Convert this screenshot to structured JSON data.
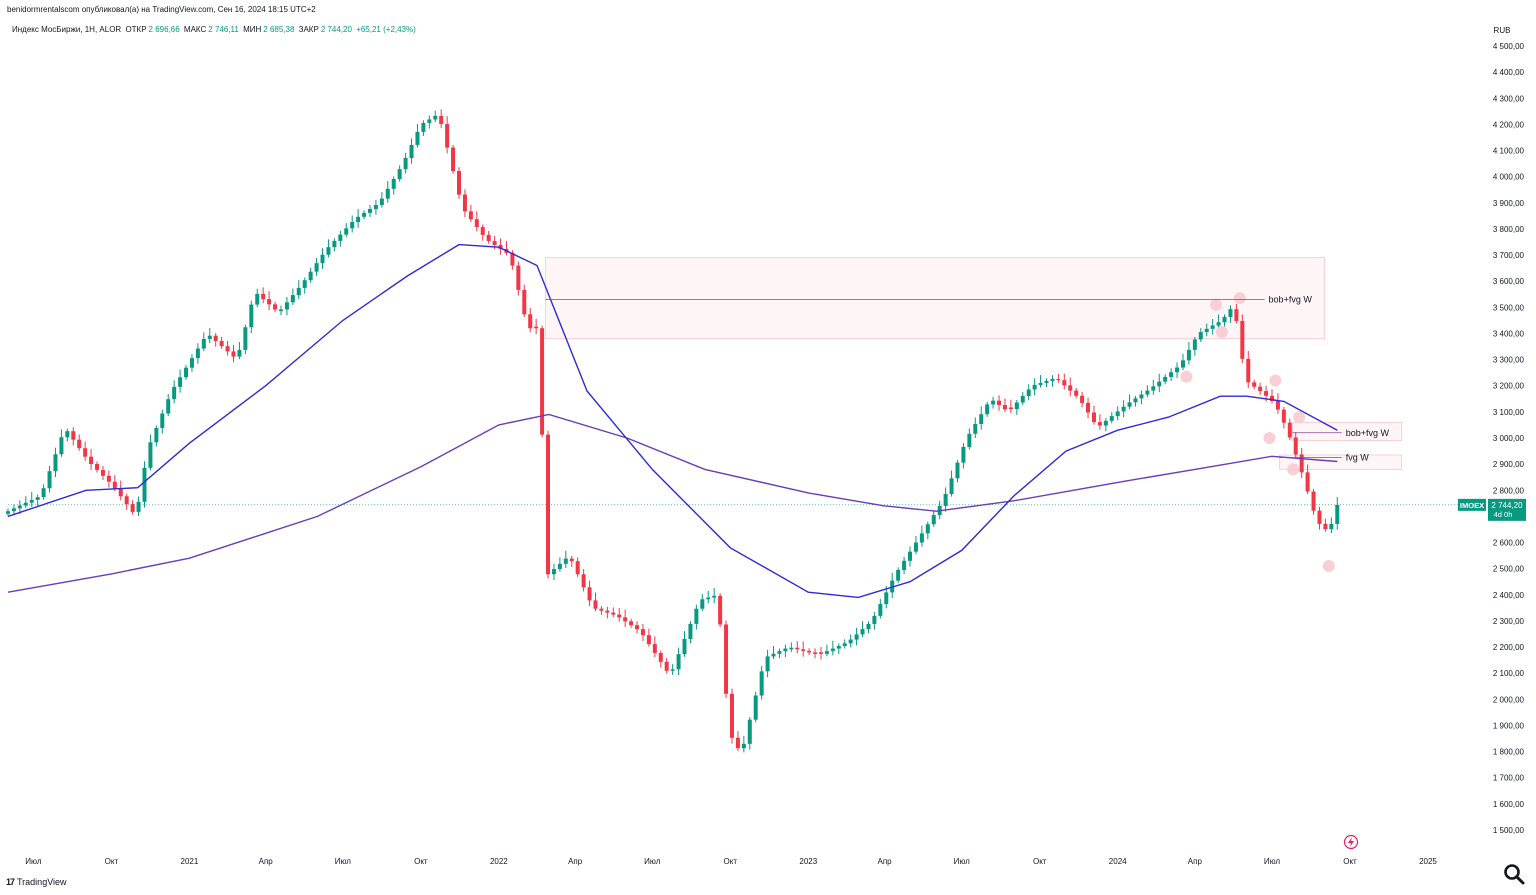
{
  "header": {
    "published": "benidormrentalscom опубликовал(а) на TradingView.com, Сен 16, 2024 18:15 UTC+2",
    "instrument": "Индекс МосБиржи, 1Н, ALOR",
    "open_label": "ОТКР",
    "open": "2 696,66",
    "high_label": "МАКС",
    "high": "2 746,11",
    "low_label": "МИН",
    "low": "2 685,38",
    "close_label": "ЗАКР",
    "close": "2 744,20",
    "change": "+65,21 (+2,43%)"
  },
  "footer": {
    "brand": "TradingView"
  },
  "icons": {
    "search": "search-icon",
    "replay": "lightning-icon",
    "brand": "tradingview-logo-icon"
  },
  "colors": {
    "up": "#089981",
    "down": "#f23645",
    "ma50": "#2d2bd9",
    "ma200": "#6a3db8",
    "zone": "#f8c7cf",
    "label_bg": "#089981"
  },
  "chart_data": {
    "type": "candlestick",
    "currency": "RUB",
    "ylim": [
      1500,
      4500
    ],
    "y_ticks": [
      4500,
      4400,
      4300,
      4200,
      4100,
      4000,
      3900,
      3800,
      3700,
      3600,
      3500,
      3400,
      3300,
      3200,
      3100,
      3000,
      2900,
      2800,
      2700,
      2600,
      2500,
      2400,
      2300,
      2200,
      2100,
      2000,
      1900,
      1800,
      1700,
      1600,
      1500
    ],
    "y_tick_labels": [
      "4 500,00",
      "4 400,00",
      "4 300,00",
      "4 200,00",
      "4 100,00",
      "4 000,00",
      "3 900,00",
      "3 800,00",
      "3 700,00",
      "3 600,00",
      "3 500,00",
      "3 400,00",
      "3 300,00",
      "3 200,00",
      "3 100,00",
      "3 000,00",
      "2 900,00",
      "2 800,00",
      "2 700,00",
      "2 600,00",
      "2 500,00",
      "2 400,00",
      "2 300,00",
      "2 200,00",
      "2 100,00",
      "2 000,00",
      "1 900,00",
      "1 800,00",
      "1 700,00",
      "1 600,00",
      "1 500,00"
    ],
    "x_range": [
      "2020-06-01",
      "2025-03-01"
    ],
    "x_ticks": [
      {
        "date": "2020-07-01",
        "label": "Июл"
      },
      {
        "date": "2020-10-01",
        "label": "Окт"
      },
      {
        "date": "2021-01-01",
        "label": "2021"
      },
      {
        "date": "2021-04-01",
        "label": "Апр"
      },
      {
        "date": "2021-07-01",
        "label": "Июл"
      },
      {
        "date": "2021-10-01",
        "label": "Окт"
      },
      {
        "date": "2022-01-01",
        "label": "2022"
      },
      {
        "date": "2022-04-01",
        "label": "Апр"
      },
      {
        "date": "2022-07-01",
        "label": "Июл"
      },
      {
        "date": "2022-10-01",
        "label": "Окт"
      },
      {
        "date": "2023-01-01",
        "label": "2023"
      },
      {
        "date": "2023-04-01",
        "label": "Апр"
      },
      {
        "date": "2023-07-01",
        "label": "Июл"
      },
      {
        "date": "2023-10-01",
        "label": "Окт"
      },
      {
        "date": "2024-01-01",
        "label": "2024"
      },
      {
        "date": "2024-04-01",
        "label": "Апр"
      },
      {
        "date": "2024-07-01",
        "label": "Июл"
      },
      {
        "date": "2024-10-01",
        "label": "Окт"
      },
      {
        "date": "2025-01-01",
        "label": "2025"
      }
    ],
    "anchors": [
      [
        "2020-06-01",
        2720
      ],
      [
        "2020-07-10",
        2780
      ],
      [
        "2020-08-07",
        3040
      ],
      [
        "2020-09-04",
        2910
      ],
      [
        "2020-10-02",
        2820
      ],
      [
        "2020-10-30",
        2700
      ],
      [
        "2020-11-13",
        2960
      ],
      [
        "2020-12-11",
        3180
      ],
      [
        "2021-01-22",
        3400
      ],
      [
        "2021-02-26",
        3300
      ],
      [
        "2021-03-19",
        3560
      ],
      [
        "2021-04-16",
        3480
      ],
      [
        "2021-05-14",
        3590
      ],
      [
        "2021-06-11",
        3720
      ],
      [
        "2021-07-16",
        3840
      ],
      [
        "2021-08-13",
        3900
      ],
      [
        "2021-09-10",
        4050
      ],
      [
        "2021-10-01",
        4200
      ],
      [
        "2021-10-22",
        4240
      ],
      [
        "2021-11-19",
        3880
      ],
      [
        "2021-12-17",
        3760
      ],
      [
        "2022-01-14",
        3700
      ],
      [
        "2022-02-04",
        3420
      ],
      [
        "2022-02-18",
        3420
      ],
      [
        "2022-02-25",
        2470
      ],
      [
        "2022-03-25",
        2550
      ],
      [
        "2022-04-22",
        2350
      ],
      [
        "2022-05-20",
        2320
      ],
      [
        "2022-06-17",
        2260
      ],
      [
        "2022-07-22",
        2090
      ],
      [
        "2022-08-26",
        2380
      ],
      [
        "2022-09-16",
        2400
      ],
      [
        "2022-09-30",
        1870
      ],
      [
        "2022-10-14",
        1790
      ],
      [
        "2022-11-11",
        2160
      ],
      [
        "2022-12-09",
        2200
      ],
      [
        "2023-01-13",
        2170
      ],
      [
        "2023-02-17",
        2220
      ],
      [
        "2023-03-17",
        2300
      ],
      [
        "2023-04-14",
        2480
      ],
      [
        "2023-05-12",
        2620
      ],
      [
        "2023-06-09",
        2760
      ],
      [
        "2023-07-07",
        3000
      ],
      [
        "2023-08-04",
        3150
      ],
      [
        "2023-08-25",
        3100
      ],
      [
        "2023-09-22",
        3200
      ],
      [
        "2023-10-20",
        3230
      ],
      [
        "2023-11-17",
        3150
      ],
      [
        "2023-12-08",
        3040
      ],
      [
        "2024-01-12",
        3130
      ],
      [
        "2024-02-09",
        3190
      ],
      [
        "2024-03-15",
        3280
      ],
      [
        "2024-04-05",
        3400
      ],
      [
        "2024-05-03",
        3450
      ],
      [
        "2024-05-17",
        3510
      ],
      [
        "2024-05-31",
        3220
      ],
      [
        "2024-06-21",
        3170
      ],
      [
        "2024-07-05",
        3130
      ],
      [
        "2024-07-19",
        3030
      ],
      [
        "2024-08-02",
        2900
      ],
      [
        "2024-08-23",
        2680
      ],
      [
        "2024-09-06",
        2640
      ],
      [
        "2024-09-16",
        2744
      ]
    ],
    "ma50": [
      [
        "2020-06-01",
        2700
      ],
      [
        "2020-09-01",
        2800
      ],
      [
        "2020-11-01",
        2810
      ],
      [
        "2021-01-01",
        2980
      ],
      [
        "2021-04-01",
        3200
      ],
      [
        "2021-07-01",
        3450
      ],
      [
        "2021-09-15",
        3620
      ],
      [
        "2021-11-15",
        3740
      ],
      [
        "2022-01-01",
        3730
      ],
      [
        "2022-02-15",
        3660
      ],
      [
        "2022-04-15",
        3180
      ],
      [
        "2022-07-01",
        2880
      ],
      [
        "2022-10-01",
        2580
      ],
      [
        "2023-01-01",
        2410
      ],
      [
        "2023-03-01",
        2390
      ],
      [
        "2023-05-01",
        2450
      ],
      [
        "2023-07-01",
        2570
      ],
      [
        "2023-09-01",
        2780
      ],
      [
        "2023-11-01",
        2950
      ],
      [
        "2024-01-01",
        3030
      ],
      [
        "2024-03-01",
        3080
      ],
      [
        "2024-05-01",
        3160
      ],
      [
        "2024-06-01",
        3160
      ],
      [
        "2024-07-15",
        3140
      ],
      [
        "2024-09-16",
        3030
      ]
    ],
    "ma200": [
      [
        "2020-06-01",
        2410
      ],
      [
        "2020-10-01",
        2480
      ],
      [
        "2021-01-01",
        2540
      ],
      [
        "2021-06-01",
        2700
      ],
      [
        "2021-10-01",
        2890
      ],
      [
        "2022-01-01",
        3050
      ],
      [
        "2022-03-01",
        3090
      ],
      [
        "2022-06-01",
        3000
      ],
      [
        "2022-09-01",
        2880
      ],
      [
        "2023-01-01",
        2790
      ],
      [
        "2023-04-01",
        2740
      ],
      [
        "2023-06-01",
        2720
      ],
      [
        "2023-09-01",
        2760
      ],
      [
        "2024-01-01",
        2830
      ],
      [
        "2024-04-01",
        2880
      ],
      [
        "2024-07-01",
        2930
      ],
      [
        "2024-09-16",
        2910
      ]
    ],
    "zones": [
      {
        "x0": "2022-02-25",
        "x1": "2024-09-01",
        "y0": 3380,
        "y1": 3690,
        "line": 3530,
        "label": "bob+fvg W"
      },
      {
        "x0": "2024-07-25",
        "x1": "2024-12-01",
        "y0": 2990,
        "y1": 3060,
        "line": 3020,
        "label": "bob+fvg W"
      },
      {
        "x0": "2024-07-10",
        "x1": "2024-12-01",
        "y0": 2880,
        "y1": 2935,
        "line": 2925,
        "label": "fvg W"
      }
    ],
    "markers": [
      [
        "2024-03-22",
        3235
      ],
      [
        "2024-04-26",
        3510
      ],
      [
        "2024-05-03",
        3405
      ],
      [
        "2024-05-24",
        3535
      ],
      [
        "2024-06-28",
        3000
      ],
      [
        "2024-07-05",
        3220
      ],
      [
        "2024-07-26",
        2880
      ],
      [
        "2024-08-02",
        3080
      ],
      [
        "2024-09-06",
        2510
      ]
    ],
    "last": {
      "date": "2024-09-16",
      "price": 2744.2,
      "symbol": "IMOEX",
      "value": "2 744,20",
      "countdown": "4d 0h"
    }
  }
}
